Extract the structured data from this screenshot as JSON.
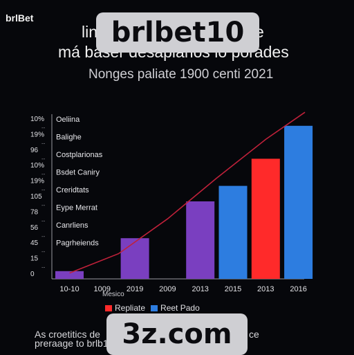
{
  "brand": "brlBet",
  "header": {
    "title_line1_start": "lin",
    "title_line1_end": "olle",
    "title_line2": "má baser desaplarios lo porades",
    "subtitle": "Nonges paliate 1900 centi 2021"
  },
  "watermarks": {
    "top": "brlbet10",
    "bottom": "3z.com"
  },
  "footnote": {
    "line1_start": "As croetitics de",
    "line1_end": "ce",
    "line2": "preraage to brlb10"
  },
  "colors": {
    "purple": "#7a3fc0",
    "red": "#ff2a2a",
    "blue": "#2d7de0",
    "trend": "#c0213a"
  },
  "chart_data": {
    "type": "bar",
    "categories": [
      "10-10",
      "1009",
      "2019",
      "2009",
      "2013",
      "2015",
      "2013",
      "2016"
    ],
    "values": [
      4,
      0,
      21,
      0,
      40,
      48,
      62,
      79
    ],
    "bar_colors": [
      "purple",
      "purple",
      "purple",
      "purple",
      "purple",
      "blue",
      "red",
      "blue"
    ],
    "ylim": [
      0,
      85
    ],
    "y_tick_labels": [
      "10%",
      "19%",
      "96",
      "10%",
      "19%",
      "105",
      "78",
      "56",
      "45",
      "15",
      "0"
    ],
    "row_labels": [
      "Oeliina",
      "Balighe",
      "Costplarionas",
      "Bsdet Caniry",
      "Creridtats",
      "Eype Merrat",
      "Canrliens",
      "Pagrheiends"
    ],
    "x_extra_label": "Mesico",
    "trend_line": [
      [
        0,
        3
      ],
      [
        1.5,
        13
      ],
      [
        3,
        31
      ],
      [
        4.5,
        52
      ],
      [
        6,
        72
      ],
      [
        7.2,
        86
      ]
    ],
    "legend": [
      {
        "label": "Repliate",
        "color": "red"
      },
      {
        "label": "Reet Pado",
        "color": "blue"
      }
    ]
  }
}
